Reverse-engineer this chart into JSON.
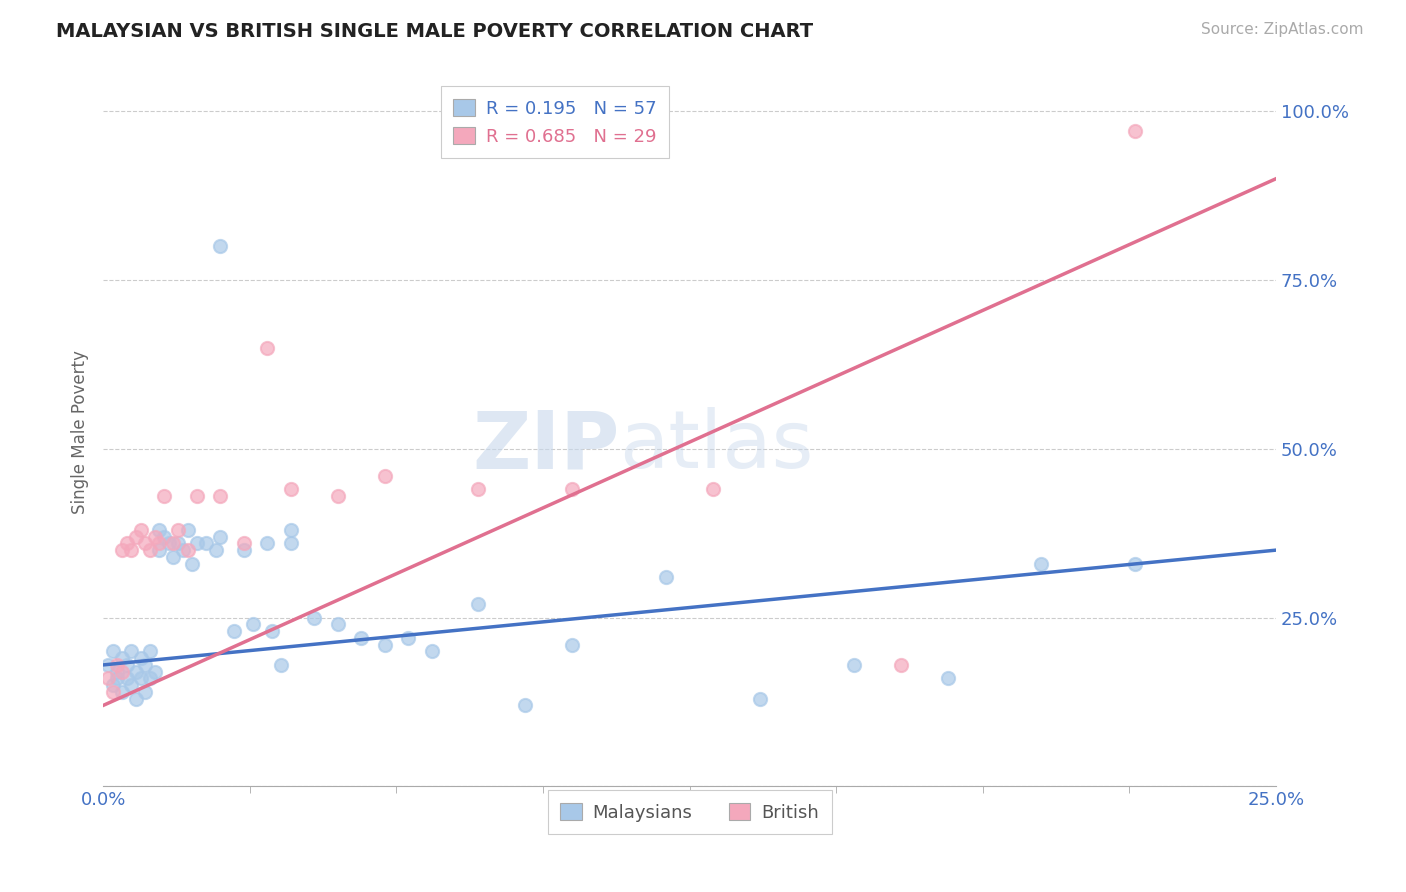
{
  "title": "MALAYSIAN VS BRITISH SINGLE MALE POVERTY CORRELATION CHART",
  "source": "Source: ZipAtlas.com",
  "ylabel": "Single Male Poverty",
  "legend_r_blue": "R = ",
  "legend_r_blue_val": "0.195",
  "legend_n_blue": "  N = ",
  "legend_n_blue_val": "57",
  "legend_r_pink": "R = ",
  "legend_r_pink_val": "0.685",
  "legend_n_pink": "  N = ",
  "legend_n_pink_val": "29",
  "legend_bottom_blue": "Malaysians",
  "legend_bottom_pink": "British",
  "watermark": "ZIPatlas",
  "blue_dot_color": "#a8c8e8",
  "pink_dot_color": "#f4a8bc",
  "blue_line_color": "#4472c4",
  "pink_line_color": "#e07090",
  "text_color_blue": "#4472c4",
  "text_color_pink": "#e07090",
  "background_color": "#ffffff",
  "xmin": 0.0,
  "xmax": 0.25,
  "ymin": 0.0,
  "ymax": 1.05,
  "blue_line_x0": 0.0,
  "blue_line_y0": 0.18,
  "blue_line_x1": 0.25,
  "blue_line_y1": 0.35,
  "pink_line_x0": 0.0,
  "pink_line_y0": 0.12,
  "pink_line_x1": 0.25,
  "pink_line_y1": 0.9,
  "blue_x": [
    0.001,
    0.002,
    0.002,
    0.003,
    0.003,
    0.004,
    0.004,
    0.005,
    0.005,
    0.006,
    0.006,
    0.007,
    0.007,
    0.008,
    0.008,
    0.009,
    0.009,
    0.01,
    0.01,
    0.011,
    0.012,
    0.012,
    0.013,
    0.014,
    0.015,
    0.016,
    0.017,
    0.018,
    0.019,
    0.02,
    0.022,
    0.025,
    0.03,
    0.035,
    0.04,
    0.04,
    0.045,
    0.05,
    0.055,
    0.06,
    0.065,
    0.07,
    0.08,
    0.09,
    0.1,
    0.12,
    0.14,
    0.16,
    0.18,
    0.2,
    0.22,
    0.024,
    0.028,
    0.032,
    0.036,
    0.025,
    0.038
  ],
  "blue_y": [
    0.18,
    0.15,
    0.2,
    0.17,
    0.16,
    0.14,
    0.19,
    0.16,
    0.18,
    0.15,
    0.2,
    0.17,
    0.13,
    0.16,
    0.19,
    0.14,
    0.18,
    0.16,
    0.2,
    0.17,
    0.35,
    0.38,
    0.37,
    0.36,
    0.34,
    0.36,
    0.35,
    0.38,
    0.33,
    0.36,
    0.36,
    0.37,
    0.35,
    0.36,
    0.36,
    0.38,
    0.25,
    0.24,
    0.22,
    0.21,
    0.22,
    0.2,
    0.27,
    0.12,
    0.21,
    0.31,
    0.13,
    0.18,
    0.16,
    0.33,
    0.33,
    0.35,
    0.23,
    0.24,
    0.23,
    0.8,
    0.18
  ],
  "pink_x": [
    0.001,
    0.002,
    0.003,
    0.004,
    0.004,
    0.005,
    0.006,
    0.007,
    0.008,
    0.009,
    0.01,
    0.011,
    0.012,
    0.013,
    0.015,
    0.016,
    0.018,
    0.02,
    0.025,
    0.03,
    0.035,
    0.04,
    0.05,
    0.06,
    0.08,
    0.1,
    0.13,
    0.17,
    0.22
  ],
  "pink_y": [
    0.16,
    0.14,
    0.18,
    0.17,
    0.35,
    0.36,
    0.35,
    0.37,
    0.38,
    0.36,
    0.35,
    0.37,
    0.36,
    0.43,
    0.36,
    0.38,
    0.35,
    0.43,
    0.43,
    0.36,
    0.65,
    0.44,
    0.43,
    0.46,
    0.44,
    0.44,
    0.44,
    0.18,
    0.97
  ]
}
